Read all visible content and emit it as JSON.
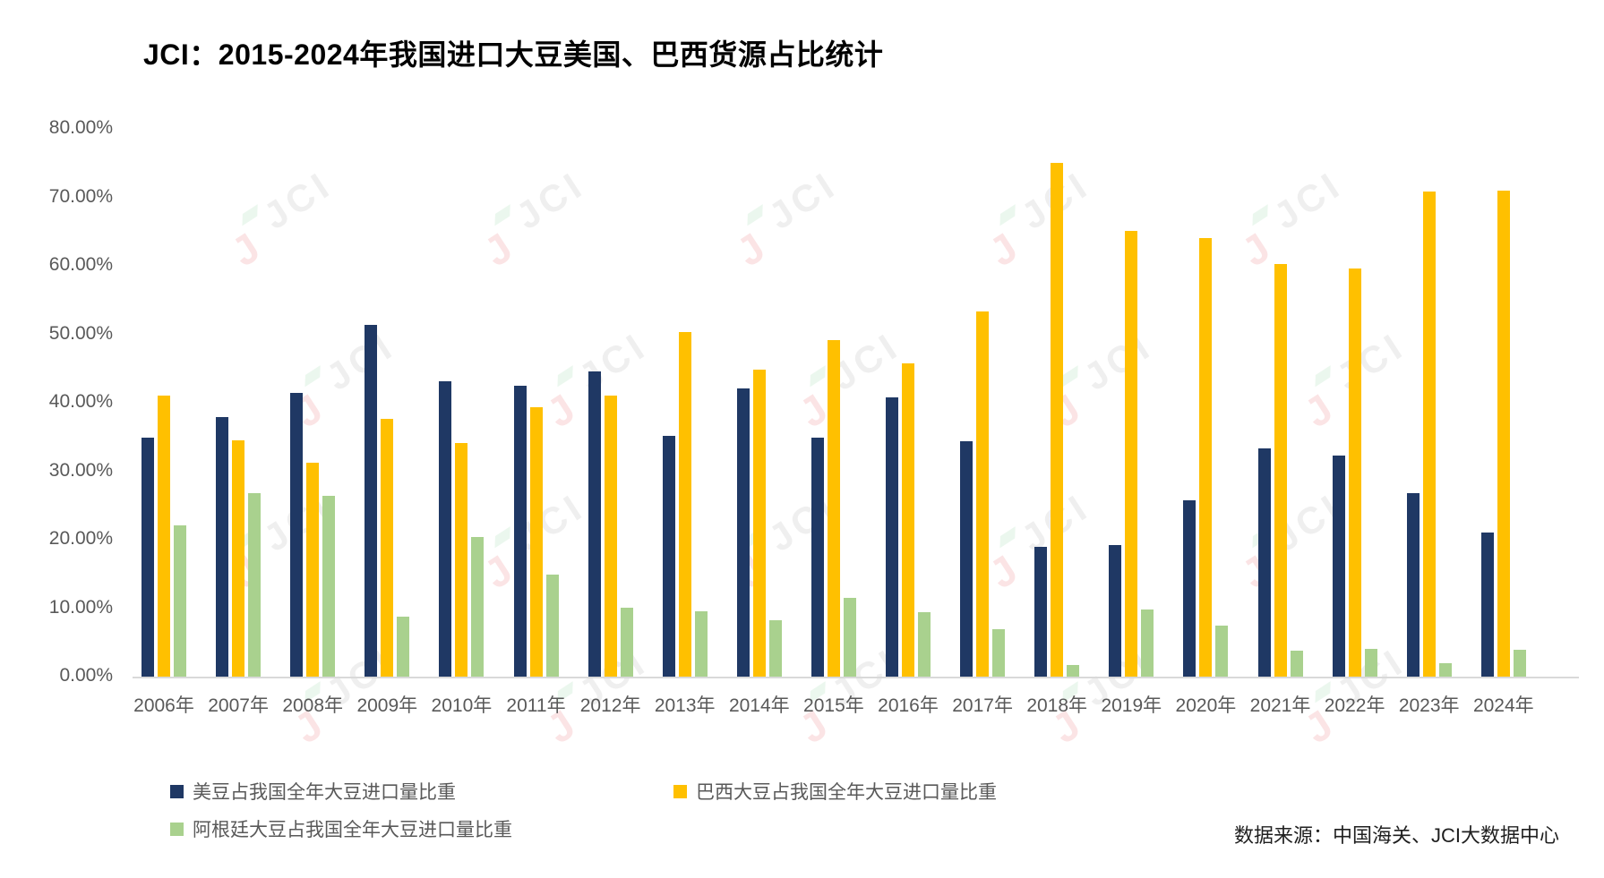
{
  "title": "JCI：2015-2024年我国进口大豆美国、巴西货源占比统计",
  "source_note": "数据来源：中国海关、JCI大数据中心",
  "watermark": {
    "accent_letter": "J",
    "logo_text": "JCI"
  },
  "colors": {
    "us_bar": "#1F3864",
    "brazil_bar": "#FFC000",
    "argentina_bar": "#A9D18E",
    "axis_text": "#595959",
    "axis_line": "#D9D9D9",
    "title_text": "#000000"
  },
  "chart_data": {
    "type": "bar",
    "title": "JCI：2015-2024年我国进口大豆美国、巴西货源占比统计",
    "xlabel": "",
    "ylabel": "",
    "ylim": [
      0,
      80
    ],
    "grid": false,
    "legend_position": "bottom-left",
    "yticks": [
      "80.00%",
      "70.00%",
      "60.00%",
      "50.00%",
      "40.00%",
      "30.00%",
      "20.00%",
      "10.00%",
      "0.00%"
    ],
    "categories": [
      "2006年",
      "2007年",
      "2008年",
      "2009年",
      "2010年",
      "2011年",
      "2012年",
      "2013年",
      "2014年",
      "2015年",
      "2016年",
      "2017年",
      "2018年",
      "2019年",
      "2020年",
      "2021年",
      "2022年",
      "2023年",
      "2024年"
    ],
    "series": [
      {
        "name": "美豆占我国全年大豆进口量比重",
        "color": "#1F3864",
        "values": [
          34.9,
          37.9,
          41.5,
          51.4,
          43.1,
          42.5,
          44.6,
          35.2,
          42.1,
          34.9,
          40.8,
          34.4,
          18.9,
          19.2,
          25.8,
          33.4,
          32.3,
          26.8,
          21.0
        ]
      },
      {
        "name": "巴西大豆占我国全年大豆进口量比重",
        "color": "#FFC000",
        "values": [
          41.1,
          34.5,
          31.2,
          37.7,
          34.1,
          39.3,
          41.0,
          50.3,
          44.8,
          49.1,
          45.7,
          53.3,
          75.1,
          65.1,
          64.1,
          60.2,
          59.6,
          70.9,
          71.0
        ]
      },
      {
        "name": "阿根廷大豆占我国全年大豆进口量比重",
        "color": "#A9D18E",
        "values": [
          22.1,
          26.8,
          26.4,
          8.8,
          20.4,
          14.9,
          10.1,
          9.6,
          8.3,
          11.5,
          9.4,
          6.9,
          1.7,
          9.8,
          7.4,
          3.8,
          4.0,
          2.0,
          3.9
        ]
      }
    ]
  }
}
